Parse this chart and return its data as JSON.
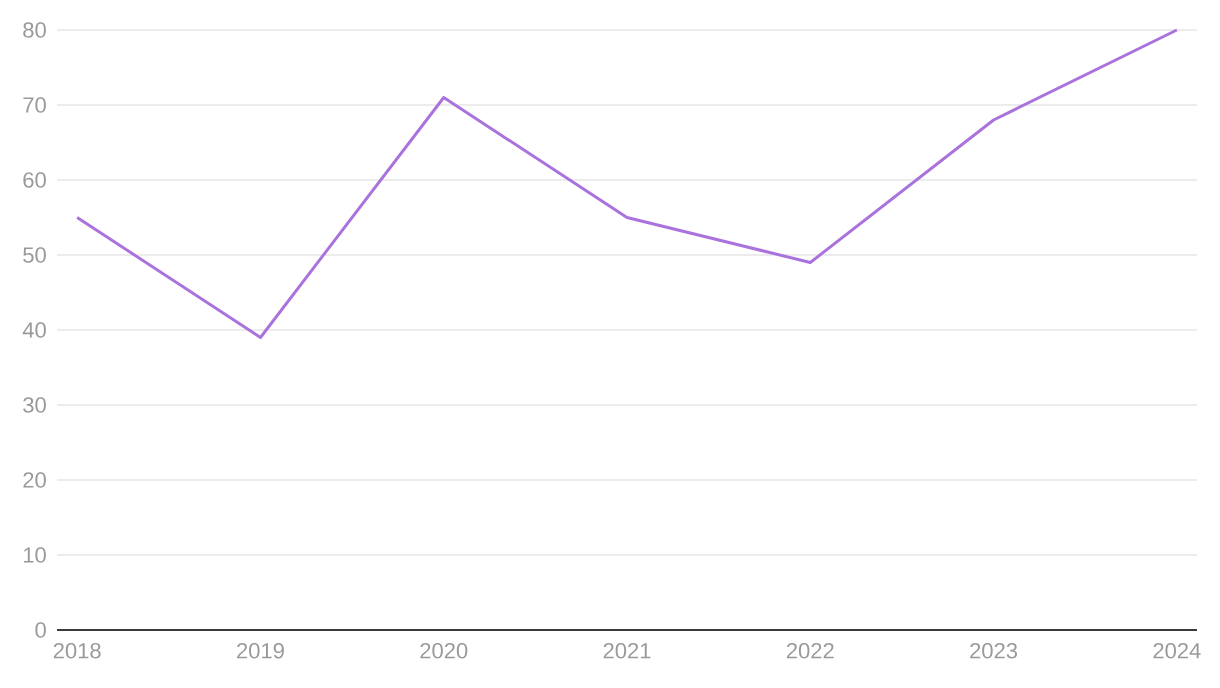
{
  "chart_data": {
    "type": "line",
    "categories": [
      "2018",
      "2019",
      "2020",
      "2021",
      "2022",
      "2023",
      "2024"
    ],
    "series": [
      {
        "color": "#a972dc",
        "values": [
          55,
          39,
          71,
          55,
          49,
          68,
          80
        ]
      }
    ],
    "ylim": [
      0,
      80
    ],
    "yticks": [
      0,
      10,
      20,
      30,
      40,
      50,
      60,
      70,
      80
    ],
    "grid": "y",
    "marker": "none",
    "line_style": "solid"
  }
}
